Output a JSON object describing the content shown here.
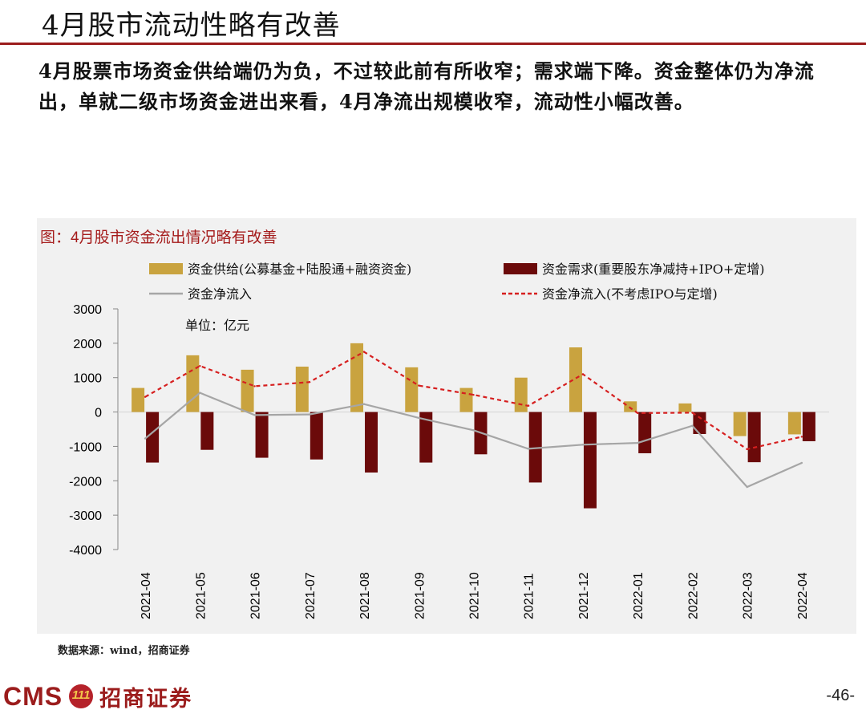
{
  "page": {
    "title": "4月股市流动性略有改善",
    "body": "4月股票市场资金供给端仍为负，不过较此前有所收窄；需求端下降。资金整体仍为净流出，单就二级市场资金进出来看，4月净流出规模收窄，流动性小幅改善。",
    "source": "数据来源：wind，招商证券",
    "logo_text": "CMS",
    "logo_badge": "111",
    "logo_cn": "招商证券",
    "page_number": "-46-"
  },
  "colors": {
    "accent": "#9b1c1c",
    "supply": "#c9a33f",
    "demand": "#6b0a0a",
    "net": "#a6a6a6",
    "net_ex": "#d61f1f"
  },
  "chart_data": {
    "type": "bar",
    "title": "图：4月股市资金流出情况略有改善",
    "unit_label": "单位：亿元",
    "categories": [
      "2021-04",
      "2021-05",
      "2021-06",
      "2021-07",
      "2021-08",
      "2021-09",
      "2021-10",
      "2021-11",
      "2021-12",
      "2022-01",
      "2022-02",
      "2022-03",
      "2022-04"
    ],
    "ylim": [
      -4000,
      3000
    ],
    "yticks": [
      3000,
      2000,
      1000,
      0,
      -1000,
      -2000,
      -3000,
      -4000
    ],
    "series": [
      {
        "name": "资金供给(公募基金+陆股通+融资资金)",
        "kind": "bar",
        "values": [
          700,
          1650,
          1230,
          1320,
          2000,
          1300,
          700,
          1000,
          1880,
          310,
          250,
          -700,
          -650
        ]
      },
      {
        "name": "资金需求(重要股东净减持+IPO+定增)",
        "kind": "bar",
        "values": [
          -1470,
          -1100,
          -1330,
          -1380,
          -1760,
          -1470,
          -1230,
          -2050,
          -2800,
          -1200,
          -640,
          -1460,
          -850
        ]
      },
      {
        "name": "资金净流入",
        "kind": "line",
        "values": [
          -770,
          560,
          -90,
          -70,
          230,
          -170,
          -530,
          -1070,
          -950,
          -900,
          -400,
          -2180,
          -1480
        ]
      },
      {
        "name": "资金净流入(不考虑IPO与定增)",
        "kind": "dashed",
        "values": [
          440,
          1340,
          750,
          870,
          1750,
          770,
          500,
          180,
          1100,
          -30,
          -20,
          -1080,
          -720
        ]
      }
    ]
  }
}
